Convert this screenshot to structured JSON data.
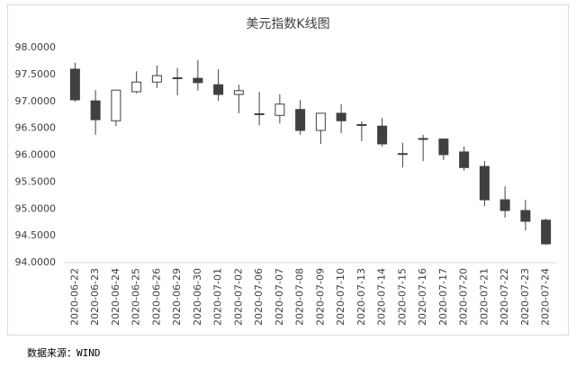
{
  "chart_data": {
    "type": "candlestick",
    "title": "美元指数K线图",
    "categories": [
      "2020-06-22",
      "2020-06-23",
      "2020-06-24",
      "2020-06-25",
      "2020-06-26",
      "2020-06-29",
      "2020-06-30",
      "2020-07-01",
      "2020-07-02",
      "2020-07-06",
      "2020-07-07",
      "2020-07-08",
      "2020-07-09",
      "2020-07-10",
      "2020-07-13",
      "2020-07-14",
      "2020-07-15",
      "2020-07-16",
      "2020-07-17",
      "2020-07-20",
      "2020-07-21",
      "2020-07-22",
      "2020-07-23",
      "2020-07-24"
    ],
    "open": [
      97.6,
      97.01,
      96.64,
      97.18,
      97.36,
      97.43,
      97.43,
      97.31,
      97.13,
      96.77,
      96.74,
      96.85,
      96.46,
      96.78,
      96.57,
      96.54,
      96.03,
      96.31,
      96.3,
      96.06,
      95.79,
      95.17,
      94.97,
      94.79
    ],
    "high": [
      97.72,
      97.21,
      97.21,
      97.56,
      97.67,
      97.62,
      97.77,
      97.6,
      97.31,
      97.18,
      97.13,
      97.03,
      96.78,
      96.95,
      96.63,
      96.69,
      96.23,
      96.38,
      96.31,
      96.16,
      95.89,
      95.42,
      95.17,
      94.82
    ],
    "low": [
      96.99,
      96.38,
      96.54,
      97.15,
      97.25,
      97.11,
      97.2,
      97.01,
      96.78,
      96.56,
      96.59,
      96.38,
      96.21,
      96.41,
      96.26,
      96.16,
      95.77,
      95.89,
      95.91,
      95.71,
      95.05,
      94.84,
      94.6,
      94.33
    ],
    "close": [
      97.03,
      96.66,
      97.21,
      97.36,
      97.48,
      97.44,
      97.35,
      97.13,
      97.2,
      96.76,
      96.95,
      96.46,
      96.78,
      96.64,
      96.56,
      96.21,
      96.02,
      96.3,
      96.01,
      95.77,
      95.17,
      94.97,
      94.77,
      94.35
    ],
    "up_color": "#ffffff",
    "down_color": "#404040",
    "edge_color": "#404040",
    "ylim": [
      94,
      98
    ],
    "yticks": [
      {
        "value": 94,
        "label": "94.0000"
      },
      {
        "value": 94.5,
        "label": "94.5000"
      },
      {
        "value": 95,
        "label": "95.0000"
      },
      {
        "value": 95.5,
        "label": "95.5000"
      },
      {
        "value": 96,
        "label": "96.0000"
      },
      {
        "value": 96.5,
        "label": "96.5000"
      },
      {
        "value": 97,
        "label": "97.0000"
      },
      {
        "value": 97.5,
        "label": "97.5000"
      },
      {
        "value": 98,
        "label": "98.0000"
      }
    ],
    "source": "数据来源：WIND"
  }
}
